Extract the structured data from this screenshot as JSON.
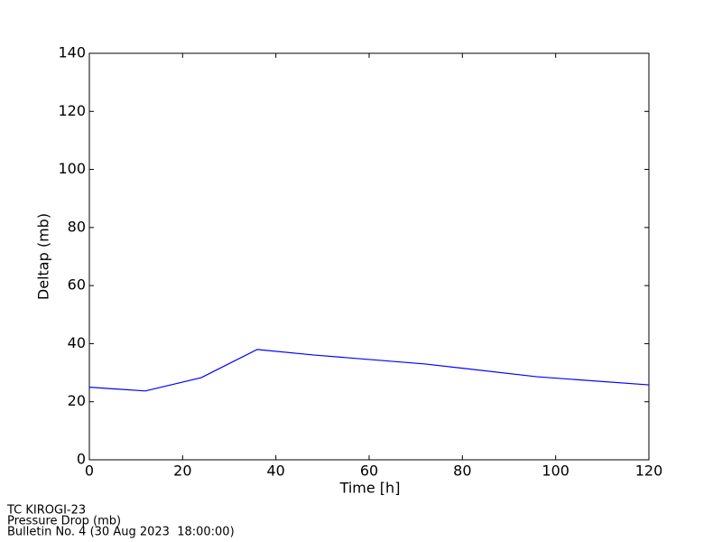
{
  "chart_data": {
    "type": "line",
    "x_label": "Time [h]",
    "y_label": "Deltap (mb)",
    "x": [
      0,
      12,
      24,
      36,
      48,
      72,
      96,
      120
    ],
    "series": [
      {
        "name": "Deltap",
        "color": "#0000ff",
        "values": [
          25,
          23.7,
          28.3,
          38,
          36.1,
          33,
          28.6,
          25.8
        ]
      }
    ],
    "xlim": [
      0,
      120
    ],
    "xticks": [
      0,
      20,
      40,
      60,
      80,
      100,
      120
    ],
    "ylim": [
      0,
      140
    ],
    "yticks": [
      0,
      20,
      40,
      60,
      80,
      100,
      120,
      140
    ],
    "grid": false,
    "footer": [
      "TC KIROGI-23",
      "Pressure Drop (mb)",
      "Bulletin No. 4 (30 Aug 2023  18:00:00)"
    ]
  }
}
